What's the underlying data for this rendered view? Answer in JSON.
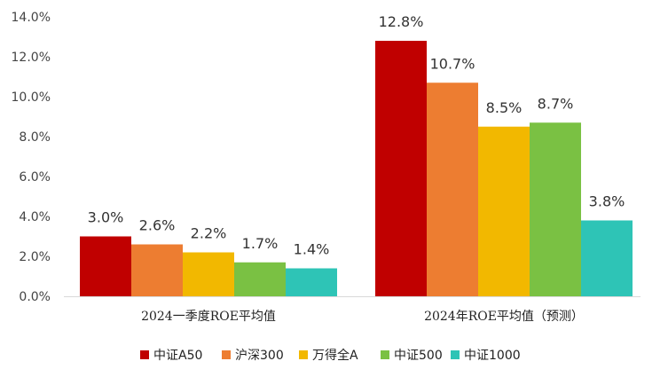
{
  "chart_data": {
    "type": "bar",
    "title": "",
    "xlabel": "",
    "ylabel": "",
    "categories": [
      "2024一季度ROE平均值",
      "2024年ROE平均值（预测）"
    ],
    "series": [
      {
        "name": "中证A50",
        "color": "#C00000",
        "values": [
          3.0,
          12.8
        ],
        "labels": [
          "3.0%",
          "12.8%"
        ]
      },
      {
        "name": "沪深300",
        "color": "#ED7D31",
        "values": [
          2.6,
          10.7
        ],
        "labels": [
          "2.6%",
          "10.7%"
        ]
      },
      {
        "name": "万得全A",
        "color": "#F2B800",
        "values": [
          2.2,
          8.5
        ],
        "labels": [
          "2.2%",
          "8.5%"
        ]
      },
      {
        "name": "中证500",
        "color": "#7AC143",
        "values": [
          1.7,
          8.7
        ],
        "labels": [
          "1.7%",
          "8.7%"
        ]
      },
      {
        "name": "中证1000",
        "color": "#2EC4B6",
        "values": [
          1.4,
          3.8
        ],
        "labels": [
          "1.4%",
          "3.8%"
        ]
      }
    ],
    "yticks": [
      "0.0%",
      "2.0%",
      "4.0%",
      "6.0%",
      "8.0%",
      "10.0%",
      "12.0%",
      "14.0%"
    ],
    "ylim": [
      0,
      14
    ],
    "grid": false,
    "legend": "bottom"
  }
}
